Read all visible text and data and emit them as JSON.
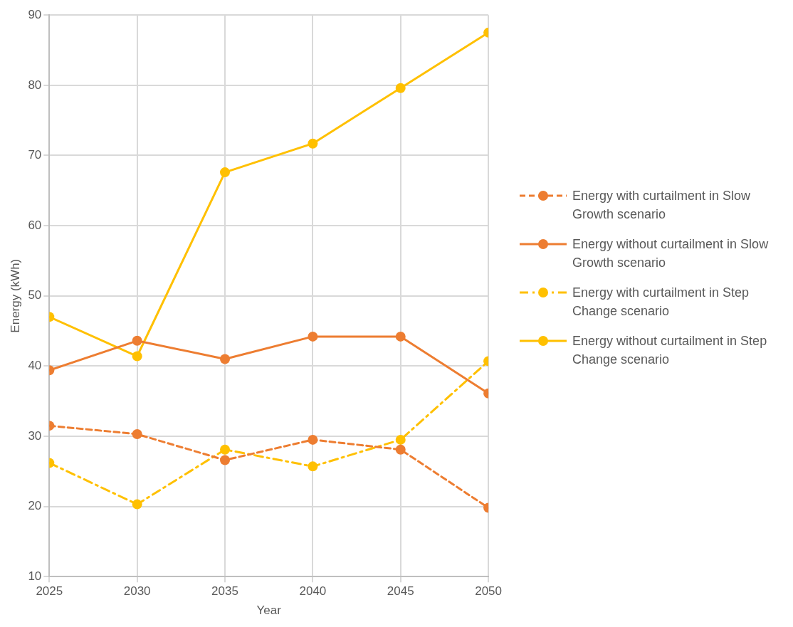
{
  "chart_data": {
    "type": "line",
    "xlabel": "Year",
    "ylabel": "Energy (kWh)",
    "x": [
      2025,
      2030,
      2035,
      2040,
      2045,
      2050
    ],
    "xlim": [
      2025,
      2050
    ],
    "xticks": [
      2025,
      2030,
      2035,
      2040,
      2045,
      2050
    ],
    "ylim": [
      10,
      90
    ],
    "yticks": [
      10,
      20,
      30,
      40,
      50,
      60,
      70,
      80,
      90
    ],
    "grid": true,
    "legend": "right",
    "marker": "circle",
    "series": [
      {
        "name": "Energy with curtailment in Slow Growth scenario",
        "color": "#ed7d31",
        "line_style": "dashed",
        "values": [
          31.5,
          30.3,
          26.6,
          29.5,
          28.1,
          19.8
        ]
      },
      {
        "name": "Energy without curtailment in Slow Growth scenario",
        "color": "#ed7d31",
        "line_style": "solid",
        "values": [
          39.4,
          43.6,
          41.0,
          44.2,
          44.2,
          36.1
        ]
      },
      {
        "name": "Energy with curtailment in Step Change scenario",
        "color": "#ffc000",
        "line_style": "dashdot",
        "values": [
          26.2,
          20.3,
          28.1,
          25.7,
          29.5,
          40.7
        ]
      },
      {
        "name": "Energy without curtailment in Step Change scenario",
        "color": "#ffc000",
        "line_style": "solid",
        "values": [
          47.0,
          41.4,
          67.6,
          71.7,
          79.6,
          87.5
        ]
      }
    ]
  }
}
